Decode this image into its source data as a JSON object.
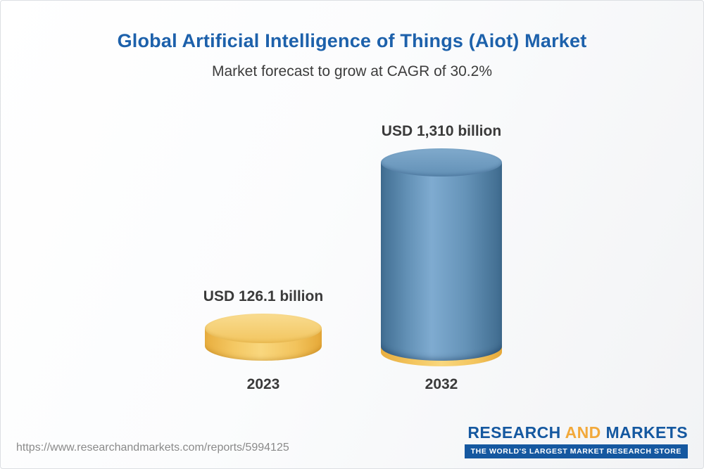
{
  "header": {
    "title": "Global Artificial Intelligence of Things (Aiot) Market",
    "subtitle": "Market forecast to grow at CAGR of 30.2%"
  },
  "chart_data": {
    "type": "bar",
    "variant": "3d-cylinder",
    "title": "Global Artificial Intelligence of Things (Aiot) Market",
    "subtitle": "Market forecast to grow at CAGR of 30.2%",
    "categories": [
      "2023",
      "2032"
    ],
    "values": [
      126.1,
      1310
    ],
    "value_labels": [
      "USD 126.1 billion",
      "USD 1,310 billion"
    ],
    "unit": "USD billion",
    "cagr": "30.2%",
    "xlabel": "",
    "ylabel": "",
    "ylim": [
      0,
      1400
    ],
    "grid": false,
    "legend": false,
    "axes_visible": false,
    "colors": {
      "bar_2023": "#f2c45e",
      "bar_2032": "#5f8fb5",
      "base_ring_2032": "#f2c45e",
      "label_text": "#3a3a3a"
    }
  },
  "footer": {
    "url": "https://www.researchandmarkets.com/reports/5994125",
    "logo": {
      "word1": "RESEARCH",
      "word2": "AND",
      "word3": "MARKETS",
      "tagline": "THE WORLD'S LARGEST MARKET RESEARCH STORE"
    }
  },
  "colors": {
    "title_blue": "#1d61ab",
    "logo_blue": "#1558a0",
    "logo_orange": "#f2a93b"
  }
}
